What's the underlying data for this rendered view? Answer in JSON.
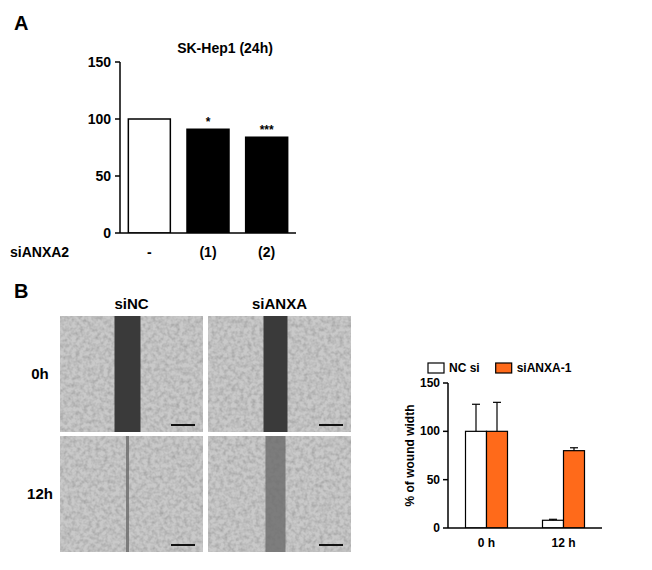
{
  "figure": {
    "panel_labels": [
      "A",
      "B"
    ],
    "image_grid": {
      "columns": [
        "siNC",
        "siANXA"
      ],
      "rows": [
        "0h",
        "12h"
      ]
    }
  },
  "chart_data": [
    {
      "type": "bar",
      "title": "SK-Hep1 (24h)",
      "x_label": "siANXA2",
      "categories": [
        "-",
        "(1)",
        "(2)"
      ],
      "values": [
        100,
        91,
        84
      ],
      "colors": [
        "#ffffff",
        "#000000",
        "#000000"
      ],
      "significance": [
        null,
        "*",
        "***"
      ],
      "ylim": [
        0,
        150
      ],
      "yticks": [
        0,
        50,
        100,
        150
      ],
      "grid": false
    },
    {
      "type": "bar",
      "y_label": "% of wound width",
      "categories": [
        "0 h",
        "12 h"
      ],
      "series": [
        {
          "name": "NC si",
          "color": "#ffffff",
          "values": [
            100,
            8
          ],
          "errors": [
            28,
            1
          ]
        },
        {
          "name": "siANXA-1",
          "color": "#ff6a1a",
          "values": [
            100,
            80
          ],
          "errors": [
            30,
            3
          ]
        }
      ],
      "legend": "top",
      "ylim": [
        0,
        150
      ],
      "yticks": [
        0,
        50,
        100,
        150
      ],
      "grid": false
    }
  ]
}
